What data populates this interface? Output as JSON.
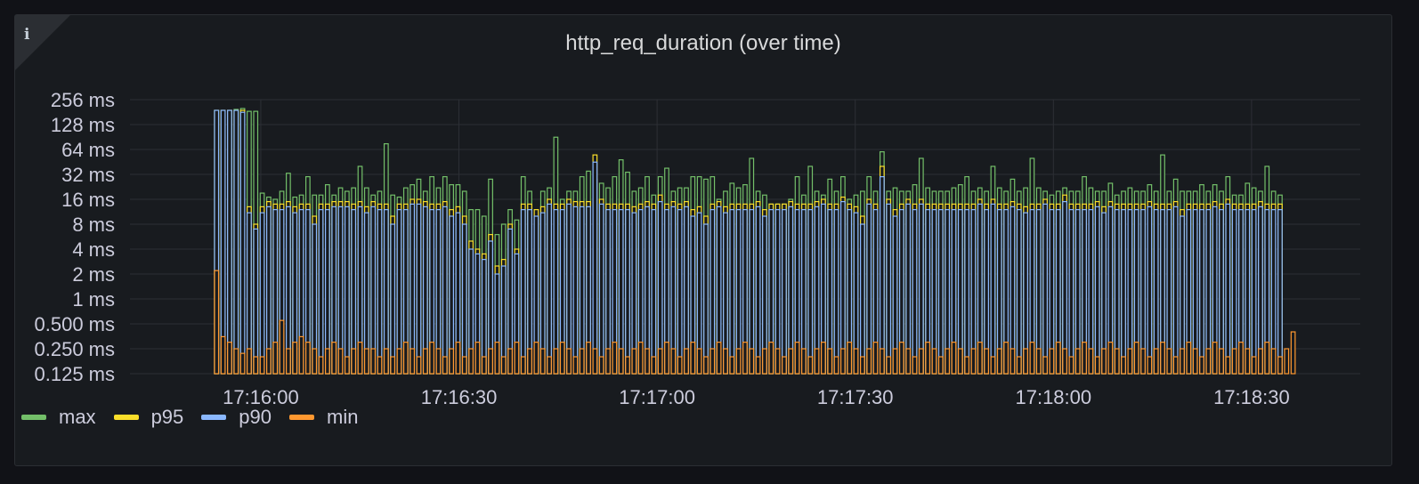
{
  "panel": {
    "info_symbol": "i"
  },
  "colors": {
    "max": "#73bf69",
    "p95": "#fade2a",
    "p90": "#8ab8ff",
    "min": "#ff9830",
    "grid": "#2c2f35",
    "text": "#ccccdc"
  },
  "chart_data": {
    "type": "bar",
    "stacked": true,
    "title": "http_req_duration (over time)",
    "y_scale": "log2",
    "y_unit": "ms",
    "y_ticks": [
      "256 ms",
      "128 ms",
      "64 ms",
      "32 ms",
      "16 ms",
      "8 ms",
      "4 ms",
      "2 ms",
      "1 ms",
      "0.500 ms",
      "0.250 ms",
      "0.125 ms"
    ],
    "y_tick_values": [
      256,
      128,
      64,
      32,
      16,
      8,
      4,
      2,
      1,
      0.5,
      0.25,
      0.125
    ],
    "ylim": [
      0.125,
      256
    ],
    "x_ticks": [
      "17:16:00",
      "17:16:30",
      "17:17:00",
      "17:17:30",
      "17:18:00",
      "17:18:30"
    ],
    "x_range": [
      "17:15:53",
      "17:18:35"
    ],
    "grid": true,
    "legend_placement": "bottom-left",
    "legend": [
      "max",
      "p95",
      "p90",
      "min"
    ],
    "series": [
      {
        "name": "max",
        "color": "#73bf69",
        "values": [
          190,
          190,
          190,
          195,
          200,
          185,
          185,
          19,
          17,
          16,
          20,
          33,
          17,
          18,
          30,
          18,
          18,
          24,
          18,
          22,
          20,
          22,
          40,
          22,
          18,
          20,
          75,
          18,
          17,
          22,
          24,
          28,
          20,
          30,
          22,
          30,
          24,
          24,
          20,
          12,
          12,
          10,
          28,
          6,
          8,
          12,
          9,
          30,
          20,
          10,
          20,
          22,
          90,
          16,
          20,
          20,
          30,
          35,
          28,
          25,
          22,
          30,
          48,
          34,
          20,
          22,
          30,
          18,
          30,
          38,
          20,
          22,
          22,
          30,
          30,
          28,
          30,
          16,
          20,
          25,
          22,
          24,
          50,
          20,
          18,
          14,
          14,
          14,
          16,
          30,
          18,
          40,
          20,
          18,
          28,
          20,
          30,
          16,
          18,
          20,
          30,
          20,
          60,
          20,
          22,
          20,
          20,
          24,
          50,
          22,
          20,
          20,
          20,
          22,
          24,
          30,
          20,
          22,
          20,
          40,
          22,
          20,
          28,
          20,
          22,
          50,
          22,
          20,
          18,
          20,
          22,
          20,
          20,
          30,
          22,
          20,
          20,
          25,
          18,
          20,
          22,
          20,
          20,
          24,
          20,
          55,
          20,
          28,
          20,
          20,
          20,
          24,
          20,
          24,
          20,
          30,
          18,
          18,
          25,
          22,
          20,
          40,
          20,
          18
        ]
      },
      {
        "name": "p95",
        "color": "#fade2a",
        "values": [
          190,
          190,
          190,
          190,
          190,
          13,
          8,
          13,
          15,
          14,
          14,
          15,
          13,
          14,
          14,
          10,
          14,
          14,
          15,
          15,
          15,
          14,
          15,
          13,
          15,
          14,
          14,
          10,
          14,
          14,
          16,
          16,
          15,
          14,
          14,
          15,
          12,
          13,
          10,
          5,
          4,
          3.5,
          6,
          2.5,
          3,
          8,
          4,
          14,
          14,
          12,
          13,
          16,
          14,
          14,
          16,
          15,
          15,
          15,
          55,
          16,
          14,
          14,
          14,
          14,
          13,
          14,
          15,
          14,
          18,
          14,
          15,
          14,
          15,
          12,
          13,
          10,
          14,
          15,
          13,
          14,
          14,
          14,
          14,
          15,
          12,
          14,
          14,
          14,
          15,
          14,
          14,
          14,
          15,
          16,
          14,
          14,
          17,
          14,
          13,
          10,
          16,
          14,
          40,
          16,
          12,
          14,
          16,
          14,
          16,
          14,
          14,
          14,
          14,
          14,
          14,
          14,
          14,
          16,
          14,
          16,
          14,
          14,
          15,
          14,
          13,
          14,
          14,
          16,
          14,
          14,
          18,
          14,
          14,
          14,
          14,
          15,
          13,
          15,
          14,
          14,
          14,
          14,
          14,
          15,
          14,
          14,
          14,
          15,
          12,
          14,
          14,
          14,
          14,
          15,
          14,
          16,
          14,
          14,
          14,
          14,
          15,
          14,
          14,
          14
        ]
      },
      {
        "name": "p90",
        "color": "#8ab8ff",
        "values": [
          190,
          190,
          190,
          190,
          180,
          11,
          7,
          11,
          13,
          12,
          12,
          13,
          11,
          12,
          12,
          8,
          12,
          12,
          13,
          13,
          13,
          12,
          13,
          11,
          13,
          12,
          12,
          8,
          12,
          12,
          14,
          14,
          13,
          12,
          12,
          13,
          10,
          11,
          8,
          4,
          3.5,
          3,
          5,
          2,
          2.5,
          7,
          3.5,
          12,
          12,
          10,
          11,
          14,
          12,
          12,
          14,
          13,
          13,
          13,
          45,
          14,
          12,
          12,
          12,
          12,
          11,
          12,
          13,
          12,
          15,
          12,
          13,
          12,
          13,
          10,
          11,
          8,
          12,
          13,
          11,
          12,
          12,
          12,
          12,
          13,
          10,
          12,
          12,
          12,
          13,
          12,
          12,
          12,
          13,
          14,
          12,
          12,
          15,
          12,
          11,
          8,
          14,
          12,
          30,
          14,
          10,
          12,
          14,
          12,
          14,
          12,
          12,
          12,
          12,
          12,
          12,
          12,
          12,
          14,
          12,
          14,
          12,
          12,
          13,
          12,
          11,
          12,
          12,
          14,
          12,
          12,
          15,
          12,
          12,
          12,
          12,
          13,
          11,
          13,
          12,
          12,
          12,
          12,
          12,
          13,
          12,
          12,
          12,
          13,
          10,
          12,
          12,
          12,
          12,
          13,
          12,
          14,
          12,
          12,
          12,
          12,
          13,
          12,
          12,
          12
        ]
      },
      {
        "name": "min",
        "color": "#ff9830",
        "values": [
          2.2,
          0.35,
          0.3,
          0.25,
          0.22,
          0.25,
          0.2,
          0.2,
          0.25,
          0.3,
          0.55,
          0.25,
          0.3,
          0.35,
          0.3,
          0.25,
          0.2,
          0.25,
          0.3,
          0.25,
          0.2,
          0.25,
          0.3,
          0.25,
          0.25,
          0.2,
          0.25,
          0.2,
          0.25,
          0.3,
          0.25,
          0.2,
          0.25,
          0.3,
          0.25,
          0.2,
          0.25,
          0.3,
          0.2,
          0.25,
          0.3,
          0.2,
          0.25,
          0.3,
          0.2,
          0.25,
          0.3,
          0.2,
          0.25,
          0.3,
          0.25,
          0.2,
          0.25,
          0.3,
          0.25,
          0.2,
          0.25,
          0.3,
          0.25,
          0.2,
          0.25,
          0.3,
          0.25,
          0.2,
          0.25,
          0.3,
          0.25,
          0.2,
          0.25,
          0.3,
          0.25,
          0.2,
          0.25,
          0.3,
          0.25,
          0.2,
          0.25,
          0.3,
          0.25,
          0.2,
          0.25,
          0.3,
          0.25,
          0.2,
          0.25,
          0.3,
          0.25,
          0.2,
          0.25,
          0.3,
          0.25,
          0.2,
          0.25,
          0.3,
          0.25,
          0.2,
          0.25,
          0.3,
          0.25,
          0.2,
          0.25,
          0.3,
          0.25,
          0.2,
          0.25,
          0.3,
          0.25,
          0.2,
          0.25,
          0.3,
          0.25,
          0.2,
          0.25,
          0.3,
          0.25,
          0.2,
          0.25,
          0.3,
          0.25,
          0.2,
          0.25,
          0.3,
          0.25,
          0.2,
          0.25,
          0.3,
          0.25,
          0.2,
          0.25,
          0.3,
          0.25,
          0.2,
          0.25,
          0.3,
          0.25,
          0.2,
          0.25,
          0.3,
          0.25,
          0.2,
          0.25,
          0.3,
          0.25,
          0.2,
          0.25,
          0.3,
          0.25,
          0.2,
          0.25,
          0.3,
          0.25,
          0.2,
          0.25,
          0.3,
          0.25,
          0.2,
          0.25,
          0.3,
          0.25,
          0.2,
          0.25,
          0.3,
          0.25,
          0.2,
          0.25,
          0.4
        ]
      }
    ]
  }
}
